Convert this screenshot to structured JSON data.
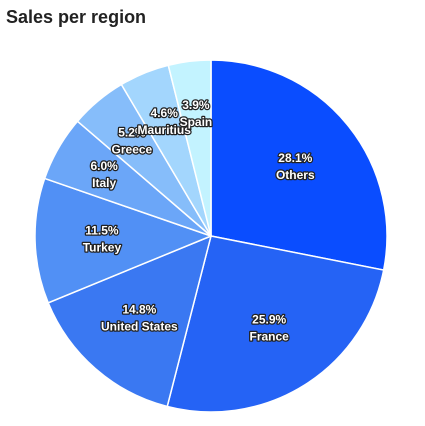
{
  "chart_data": {
    "type": "pie",
    "title": "Sales per region",
    "categories": [
      "Others",
      "France",
      "United States",
      "Turkey",
      "Italy",
      "Greece",
      "Mauritius",
      "Spain"
    ],
    "values": [
      28.1,
      25.9,
      14.8,
      11.5,
      6.0,
      5.2,
      4.6,
      3.9
    ],
    "value_labels": [
      "28.1%",
      "25.9%",
      "14.8%",
      "11.5%",
      "6.0%",
      "5.2%",
      "4.6%",
      "3.9%"
    ],
    "colors": [
      "#0a4dff",
      "#2563f5",
      "#3a78f2",
      "#5190f5",
      "#6ba6f8",
      "#86bdfa",
      "#a3d6fd",
      "#c3f3ff"
    ]
  }
}
